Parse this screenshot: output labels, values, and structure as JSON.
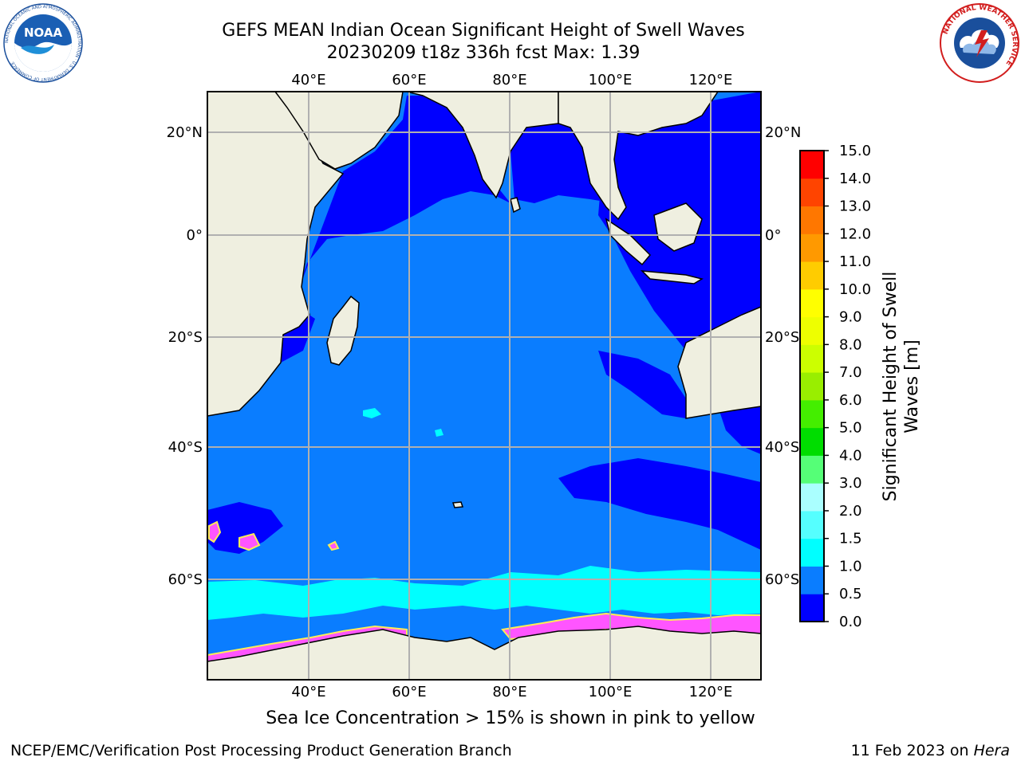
{
  "title": {
    "line1": "GEFS MEAN Indian Ocean Significant Height of Swell Waves",
    "line2": "20230209 t18z 336h fcst   Max: 1.39"
  },
  "map": {
    "region": "Indian Ocean",
    "lon_range": [
      20,
      130
    ],
    "lat_range": [
      -74,
      27
    ],
    "top_lon_labels": [
      "40°E",
      "60°E",
      "80°E",
      "100°E",
      "120°E"
    ],
    "bottom_lon_labels": [
      "40°E",
      "60°E",
      "80°E",
      "100°E",
      "120°E"
    ],
    "left_lat_labels": [
      "20°N",
      "0°",
      "20°S",
      "40°S",
      "60°S"
    ],
    "right_lat_labels": [
      "20°N",
      "0°",
      "20°S",
      "40°S",
      "60°S"
    ],
    "colors": {
      "land": "#efefe0",
      "band_0_0_5": "#0000ff",
      "band_0_5_1_0": "#0a7dff",
      "band_1_0_1_5": "#00ffff",
      "sea_ice_pink": "#ff55ff",
      "sea_ice_yellow": "#ffee55",
      "gridline": "#b0b0b0"
    }
  },
  "colorbar": {
    "label": "Significant Height of Swell Waves [m]",
    "ticks": [
      "0.0",
      "0.5",
      "1.0",
      "1.5",
      "2.0",
      "3.0",
      "4.0",
      "5.0",
      "6.0",
      "7.0",
      "8.0",
      "9.0",
      "10.0",
      "11.0",
      "12.0",
      "13.0",
      "14.0",
      "15.0"
    ],
    "colors": [
      "#0000ff",
      "#0a7dff",
      "#00ffff",
      "#55ffff",
      "#aaffff",
      "#55ff77",
      "#00dd00",
      "#44ee00",
      "#99ee00",
      "#ccff00",
      "#eeff00",
      "#ffff00",
      "#ffcc00",
      "#ff9900",
      "#ff7700",
      "#ff4400",
      "#ff0000"
    ]
  },
  "note": "Sea Ice Concentration > 15% is shown in pink to yellow",
  "footer": {
    "left": "NCEP/EMC/Verification Post Processing Product Generation Branch",
    "right_prefix": "11 Feb 2023 on ",
    "right_italic": "Hera"
  },
  "logos": {
    "noaa_text": "NOAA",
    "noaa_ring": "NATIONAL OCEANIC AND ATMOSPHERIC ADMINISTRATION · U.S. DEPARTMENT OF COMMERCE",
    "nws_ring": "NATIONAL WEATHER SERVICE"
  }
}
